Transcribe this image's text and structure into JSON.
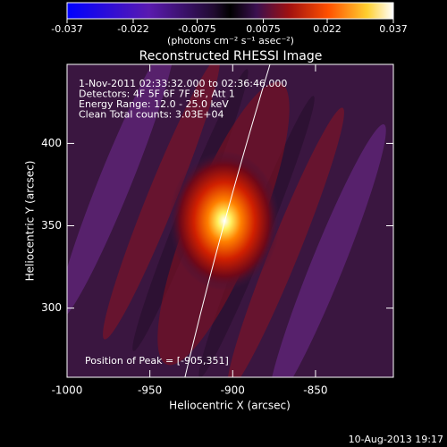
{
  "chart_data": {
    "type": "heatmap",
    "title": "Reconstructed RHESSI Image",
    "xlabel": "Heliocentric X (arcsec)",
    "ylabel": "Heliocentric Y (arcsec)",
    "xlim": [
      -1000,
      -803
    ],
    "ylim": [
      258,
      448
    ],
    "xticks": [
      -1000,
      -950,
      -900,
      -850
    ],
    "yticks": [
      300,
      350,
      400
    ],
    "colorbar": {
      "label": "(photons cm⁻² s⁻¹ asec⁻²)",
      "lim": [
        -0.037,
        0.037
      ],
      "ticks": [
        -0.037,
        -0.022,
        -0.0075,
        0.0075,
        0.022,
        0.037
      ]
    },
    "annotations": [
      "1-Nov-2011 02:33:32.000 to 02:36:46.000",
      "Detectors: 4F 5F 6F 7F 8F, Att 1",
      "Energy Range: 12.0 - 25.0 keV",
      "Clean     Total counts: 3.03E+04"
    ],
    "peak_label": "Position of Peak = [-905,351]",
    "footer": "10-Aug-2013 19:17"
  }
}
